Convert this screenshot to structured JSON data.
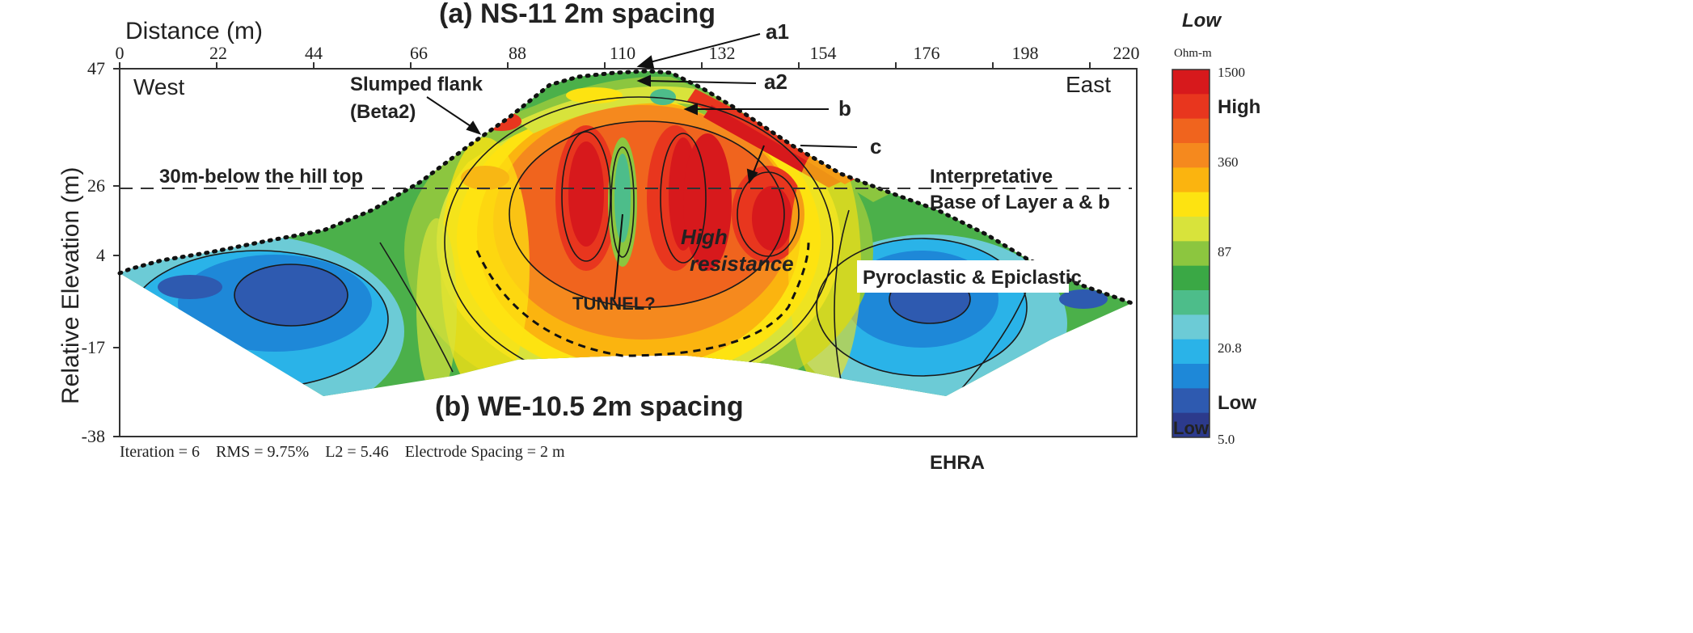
{
  "titles": {
    "top": "(a) NS-11 2m spacing",
    "bottom": "(b) WE-10.5 2m spacing"
  },
  "axes": {
    "x_label": "Distance (m)",
    "y_label": "Relative Elevation (m)",
    "x_ticks": [
      "0",
      "22",
      "44",
      "66",
      "88",
      "110",
      "132",
      "154",
      "176",
      "198",
      "220"
    ],
    "y_ticks": [
      "47",
      "26",
      "4",
      "-17",
      "-38"
    ]
  },
  "labels": {
    "west": "West",
    "east": "East",
    "slumped_line1": "Slumped flank",
    "slumped_line2": "(Beta2)",
    "hilltop_line": "30m-below the hill top",
    "interp_line1": "Interpretative",
    "interp_line2": "Base of Layer a & b",
    "high_line1": "High",
    "high_line2": "resistance",
    "tunnel": "TUNNEL?",
    "pyroclastic": "Pyroclastic & Epiclastic",
    "a1": "a1",
    "a2": "a2",
    "b": "b",
    "c": "c"
  },
  "footer": {
    "stats": "Iteration = 6    RMS = 9.75%    L2 = 5.46    Electrode Spacing = 2 m",
    "credit": "EHRA"
  },
  "colorbar": {
    "top_label": "Low",
    "unit": "Ohm-m",
    "high_label": "High",
    "low_label": "Low",
    "low_inside": "Low",
    "ticks": [
      "1500",
      "360",
      "87",
      "20.8",
      "5.0"
    ],
    "colors": [
      "#d7191c",
      "#e8361e",
      "#f0641e",
      "#f5891e",
      "#fbb40f",
      "#fde311",
      "#d8e33b",
      "#8cc63f",
      "#3aa845",
      "#4dbd8a",
      "#6ccbd6",
      "#2ab3e8",
      "#1e88d8",
      "#2e5ab0",
      "#2c3a8c"
    ]
  }
}
